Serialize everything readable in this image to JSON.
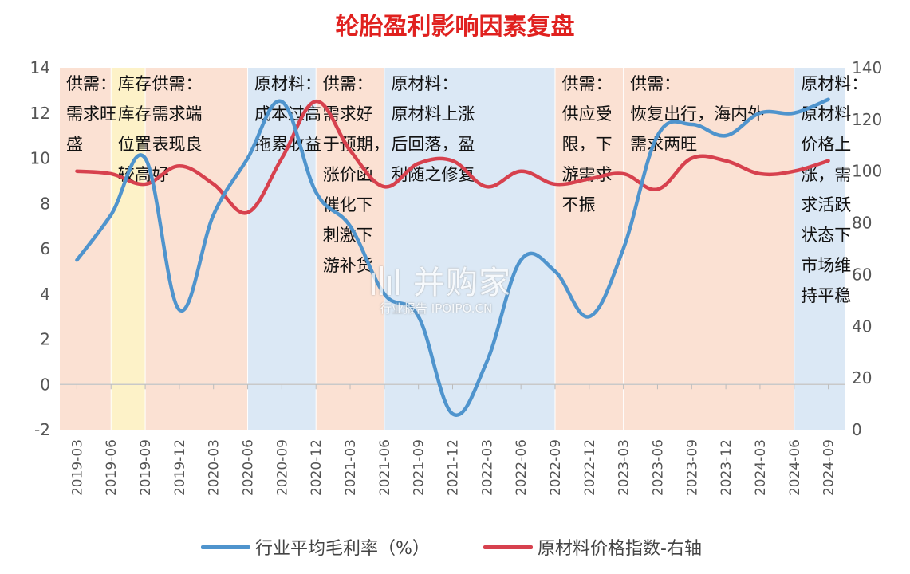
{
  "chart_data": {
    "type": "line",
    "title": "轮胎盈利影响因素复盘",
    "categories": [
      "2019-03",
      "2019-06",
      "2019-09",
      "2019-12",
      "2020-03",
      "2020-06",
      "2020-09",
      "2020-12",
      "2021-03",
      "2021-06",
      "2021-09",
      "2021-12",
      "2022-03",
      "2022-06",
      "2022-09",
      "2022-12",
      "2023-03",
      "2023-06",
      "2023-09",
      "2023-12",
      "2024-03",
      "2024-06",
      "2024-09"
    ],
    "left_axis": {
      "ylim": [
        -2,
        14
      ],
      "ticks": [
        -2,
        0,
        2,
        4,
        6,
        8,
        10,
        12,
        14
      ]
    },
    "right_axis": {
      "ylim": [
        0,
        140
      ],
      "ticks": [
        0,
        20,
        40,
        60,
        80,
        100,
        120,
        140
      ]
    },
    "series": [
      {
        "name": "行业平均毛利率（%）",
        "axis": "left",
        "color": "#4f94cd",
        "values": [
          5.5,
          7.5,
          10.0,
          3.3,
          7.5,
          10.0,
          12.5,
          8.5,
          7.0,
          4.0,
          3.0,
          -1.3,
          1.0,
          5.5,
          5.0,
          3.0,
          6.0,
          11.0,
          11.5,
          11.0,
          12.0,
          12.0,
          12.6
        ]
      },
      {
        "name": "原材料价格指数-右轴",
        "axis": "right",
        "color": "#d7414e",
        "values": [
          100,
          99,
          95,
          102,
          95,
          84,
          105,
          127,
          108,
          94,
          103,
          104,
          94,
          100,
          95,
          97,
          99,
          93,
          105,
          104,
          99,
          100,
          104
        ]
      }
    ],
    "bands": [
      {
        "from": 0,
        "to": 1,
        "color": "#fbe1d3",
        "lines": [
          "供需：",
          "需求旺",
          "盛"
        ]
      },
      {
        "from": 1,
        "to": 2,
        "color": "#fdf2c8",
        "lines": [
          "库存：",
          "库存",
          "位置",
          "较高"
        ]
      },
      {
        "from": 2,
        "to": 5,
        "color": "#fbe1d3",
        "lines": [
          "供需：",
          "需求端",
          "表现良",
          "好"
        ]
      },
      {
        "from": 5,
        "to": 7,
        "color": "#dbe8f5",
        "lines": [
          "原材料：",
          "成本过高",
          "拖累收益"
        ]
      },
      {
        "from": 7,
        "to": 9,
        "color": "#fbe1d3",
        "lines": [
          "供需：",
          "需求好",
          "于预期，",
          "涨价函",
          "催化下",
          "刺激下",
          "游补货"
        ]
      },
      {
        "from": 9,
        "to": 14,
        "color": "#dbe8f5",
        "lines": [
          "原材料：",
          "原材料上涨",
          "后回落，盈",
          "利随之修复"
        ]
      },
      {
        "from": 14,
        "to": 16,
        "color": "#fbe1d3",
        "lines": [
          "供需：",
          "供应受",
          "限，下",
          "游需求",
          "不振"
        ]
      },
      {
        "from": 16,
        "to": 21,
        "color": "#fbe1d3",
        "lines": [
          "供需：",
          "恢复出行，海内外",
          "需求两旺"
        ]
      },
      {
        "from": 21,
        "to": 22,
        "color": "#dbe8f5",
        "lines": [
          "原材料：",
          "原材料",
          "价格上",
          "涨，需",
          "求活跃",
          "状态下",
          "市场维",
          "持平稳"
        ]
      }
    ]
  },
  "watermark": {
    "main": "并购家",
    "sub": "行业报告 IPOIPO.CN"
  }
}
